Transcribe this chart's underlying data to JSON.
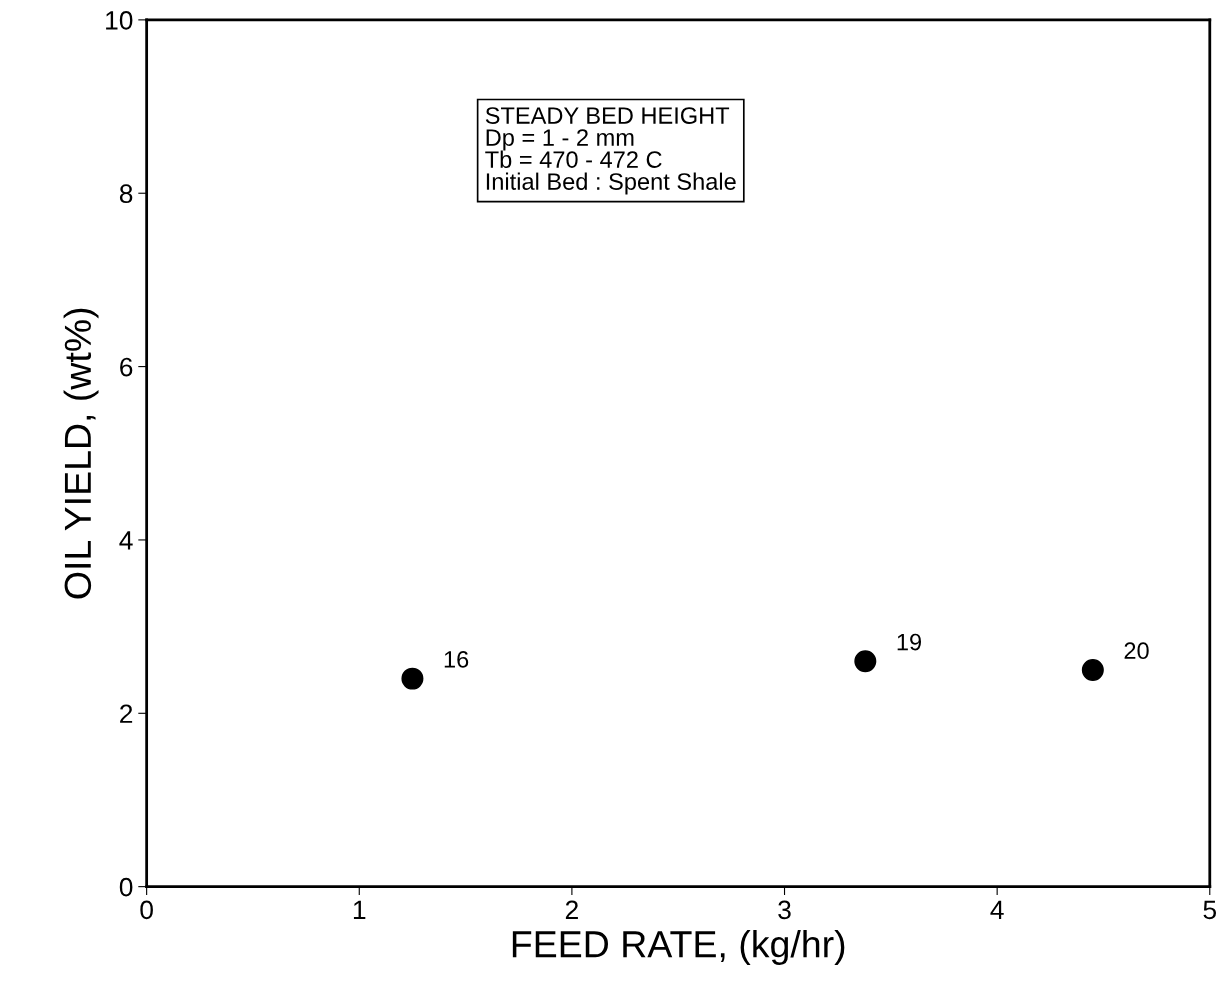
{
  "chart_data": {
    "type": "scatter",
    "xlabel": "FEED RATE, (kg/hr)",
    "ylabel": "OIL YIELD, (wt%)",
    "x": [
      1.25,
      3.38,
      4.45
    ],
    "series": [
      {
        "color": "#000000",
        "values": [
          2.4,
          2.6,
          2.5
        ]
      }
    ],
    "marker": "circle",
    "grid": false,
    "xlim": [
      0,
      5
    ],
    "xticks": [
      0,
      1,
      2,
      3,
      4,
      5
    ],
    "ylim": [
      0,
      10
    ],
    "yticks": [
      0,
      2,
      4,
      6,
      8,
      10
    ],
    "annotations": [
      {
        "text": "16",
        "x": 1.25,
        "y": 2.4
      },
      {
        "text": "19",
        "x": 3.38,
        "y": 2.6
      },
      {
        "text": "20",
        "x": 4.45,
        "y": 2.5
      },
      "STEADY BED HEIGHT\nDp = 1 - 2 mm\nTb = 470 - 472 C\nInitial Bed : Spent Shale"
    ]
  }
}
